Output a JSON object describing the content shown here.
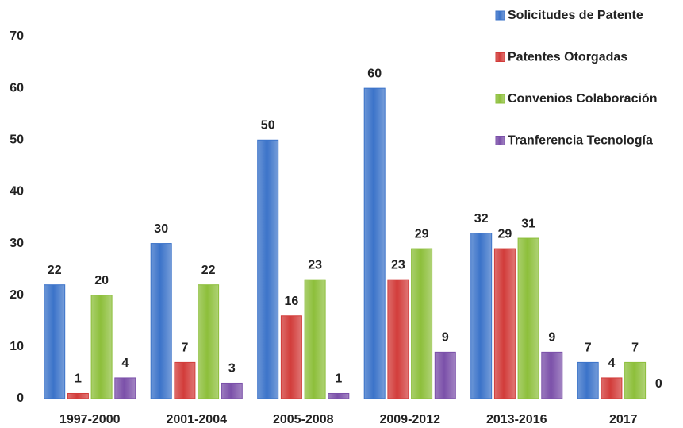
{
  "chart_data": {
    "type": "bar",
    "categories": [
      "1997-2000",
      "2001-2004",
      "2005-2008",
      "2009-2012",
      "2013-2016",
      "2017"
    ],
    "series": [
      {
        "name": "Solicitudes de Patente",
        "color": "#3b73c9",
        "values": [
          22,
          30,
          50,
          60,
          32,
          7
        ]
      },
      {
        "name": "Patentes Otorgadas",
        "color": "#d23c3a",
        "values": [
          1,
          7,
          16,
          23,
          29,
          4
        ]
      },
      {
        "name": "Convenios Colaboración",
        "color": "#8dbf3b",
        "values": [
          20,
          22,
          23,
          29,
          31,
          7
        ]
      },
      {
        "name": "Tranferencia Tecnología",
        "color": "#7b50a9",
        "values": [
          4,
          3,
          1,
          9,
          9,
          0
        ]
      }
    ],
    "ylim": [
      0,
      70
    ],
    "yticks": [
      0,
      10,
      20,
      30,
      40,
      50,
      60,
      70
    ],
    "grid": false,
    "legend": "top-right"
  }
}
